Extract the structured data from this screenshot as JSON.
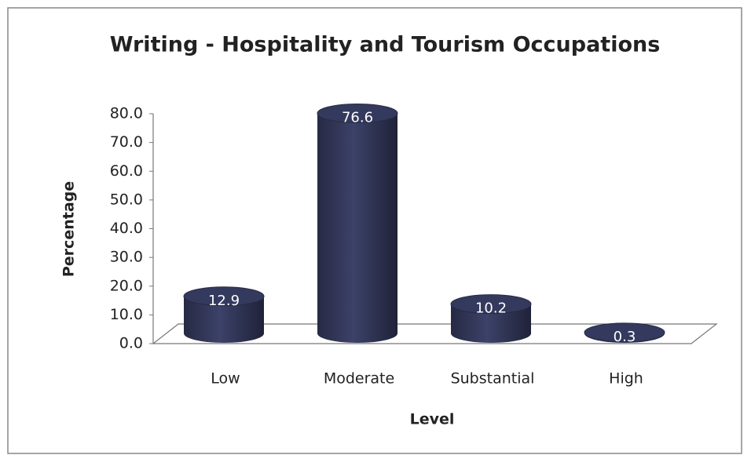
{
  "chart_data": {
    "type": "bar",
    "title": "Writing - Hospitality and Tourism Occupations",
    "x_label": "Level",
    "y_label": "Percentage",
    "categories": [
      "Low",
      "Moderate",
      "Substantial",
      "High"
    ],
    "values": [
      12.9,
      76.6,
      10.2,
      0.3
    ],
    "color": "#343a5e",
    "ylim": [
      0,
      80
    ],
    "yticks": [
      {
        "value": 0,
        "label": "0.0"
      },
      {
        "value": 10,
        "label": "10.0"
      },
      {
        "value": 20,
        "label": "20.0"
      },
      {
        "value": 30,
        "label": "30.0"
      },
      {
        "value": 40,
        "label": "40.0"
      },
      {
        "value": 50,
        "label": "50.0"
      },
      {
        "value": 60,
        "label": "60.0"
      },
      {
        "value": 70,
        "label": "70.0"
      },
      {
        "value": 80,
        "label": "80.0"
      }
    ],
    "grid": false
  }
}
